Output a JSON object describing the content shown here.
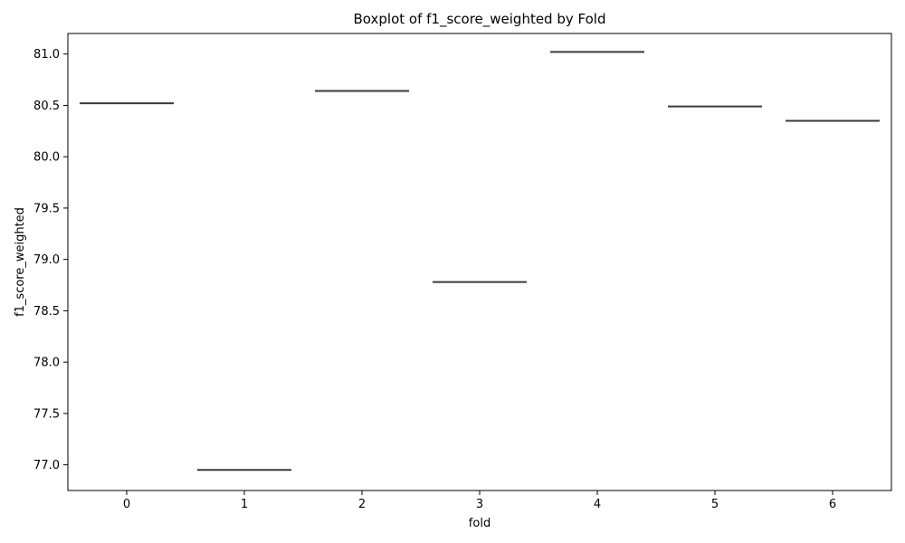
{
  "chart_data": {
    "type": "box",
    "title": "Boxplot of f1_score_weighted by Fold",
    "xlabel": "fold",
    "ylabel": "f1_score_weighted",
    "categories": [
      "0",
      "1",
      "2",
      "3",
      "4",
      "5",
      "6"
    ],
    "values": [
      80.52,
      76.95,
      80.64,
      78.78,
      81.02,
      80.49,
      80.35
    ],
    "ylim": [
      76.75,
      81.2
    ],
    "yticks": [
      77.0,
      77.5,
      78.0,
      78.5,
      79.0,
      79.5,
      80.0,
      80.5,
      81.0
    ],
    "ytick_labels": [
      "77.0",
      "77.5",
      "78.0",
      "78.5",
      "79.0",
      "79.5",
      "80.0",
      "80.5",
      "81.0"
    ],
    "grid": false,
    "line_color": "#3a3a3a"
  }
}
